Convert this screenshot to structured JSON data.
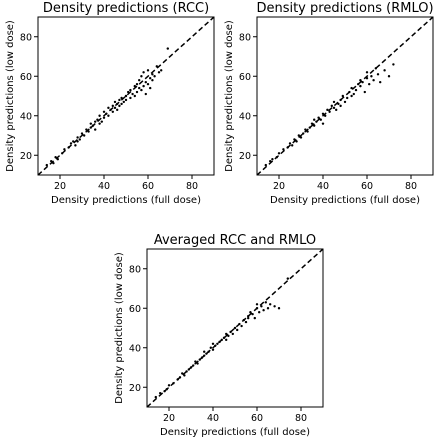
{
  "chart_data": [
    {
      "type": "scatter",
      "title": "Density predictions (RCC)",
      "xlabel": "Density predictions (full dose)",
      "ylabel": "Density predictions (low dose)",
      "xlim": [
        10,
        90
      ],
      "ylim": [
        10,
        90
      ],
      "xticks": [
        20,
        40,
        60,
        80
      ],
      "yticks": [
        20,
        40,
        60,
        80
      ],
      "reference_line": "y = x (dashed)",
      "x": [
        14,
        16,
        17,
        18,
        19,
        21,
        22,
        24,
        25,
        26,
        27,
        28,
        28,
        29,
        30,
        31,
        32,
        33,
        34,
        34,
        35,
        36,
        36,
        37,
        38,
        38,
        39,
        40,
        40,
        41,
        42,
        42,
        43,
        44,
        44,
        45,
        45,
        46,
        46,
        47,
        47,
        48,
        48,
        49,
        50,
        50,
        51,
        52,
        52,
        53,
        54,
        54,
        55,
        55,
        56,
        56,
        57,
        57,
        58,
        58,
        59,
        59,
        60,
        60,
        61,
        61,
        62,
        62,
        63,
        64,
        65,
        66,
        69
      ],
      "y": [
        15,
        17,
        16,
        19,
        18,
        21,
        23,
        24,
        26,
        27,
        25,
        29,
        27,
        28,
        31,
        30,
        33,
        32,
        34,
        36,
        35,
        37,
        33,
        38,
        36,
        40,
        37,
        39,
        42,
        41,
        44,
        40,
        43,
        45,
        42,
        47,
        44,
        46,
        43,
        48,
        45,
        49,
        46,
        47,
        50,
        48,
        52,
        49,
        53,
        51,
        55,
        50,
        56,
        52,
        54,
        58,
        53,
        60,
        55,
        62,
        57,
        51,
        56,
        63,
        59,
        54,
        61,
        58,
        60,
        65,
        62,
        63,
        74
      ]
    },
    {
      "type": "scatter",
      "title": "Density predictions (RMLO)",
      "xlabel": "Density predictions (full dose)",
      "ylabel": "Density predictions (low dose)",
      "xlim": [
        10,
        90
      ],
      "ylim": [
        10,
        90
      ],
      "xticks": [
        20,
        40,
        60,
        80
      ],
      "yticks": [
        20,
        40,
        60,
        80
      ],
      "reference_line": "y = x (dashed)",
      "x": [
        14,
        16,
        17,
        19,
        20,
        22,
        24,
        25,
        26,
        27,
        28,
        29,
        30,
        31,
        32,
        33,
        34,
        35,
        36,
        36,
        37,
        38,
        39,
        40,
        40,
        41,
        42,
        43,
        44,
        45,
        45,
        46,
        47,
        48,
        48,
        49,
        50,
        51,
        52,
        53,
        53,
        54,
        55,
        56,
        57,
        57,
        58,
        59,
        60,
        60,
        61,
        62,
        63,
        64,
        65,
        66,
        68,
        70,
        72
      ],
      "y": [
        15,
        17,
        18,
        19,
        21,
        23,
        24,
        26,
        25,
        28,
        27,
        30,
        29,
        31,
        33,
        32,
        34,
        36,
        35,
        38,
        37,
        39,
        38,
        41,
        36,
        40,
        43,
        42,
        45,
        44,
        47,
        43,
        46,
        48,
        45,
        50,
        47,
        49,
        52,
        50,
        54,
        51,
        53,
        56,
        55,
        58,
        57,
        52,
        59,
        62,
        56,
        60,
        58,
        64,
        61,
        57,
        63,
        60,
        66
      ]
    },
    {
      "type": "scatter",
      "title": "Averaged RCC and RMLO",
      "xlabel": "Density predictions (full dose)",
      "ylabel": "Density predictions (low dose)",
      "xlim": [
        10,
        90
      ],
      "ylim": [
        10,
        90
      ],
      "xticks": [
        20,
        40,
        60,
        80
      ],
      "yticks": [
        20,
        40,
        60,
        80
      ],
      "reference_line": "y = x (dashed)",
      "x": [
        14,
        16,
        18,
        19,
        20,
        22,
        24,
        25,
        26,
        27,
        28,
        29,
        30,
        31,
        32,
        33,
        34,
        35,
        36,
        36,
        37,
        38,
        39,
        40,
        40,
        41,
        42,
        43,
        44,
        45,
        46,
        46,
        47,
        48,
        49,
        50,
        51,
        52,
        53,
        54,
        55,
        56,
        56,
        57,
        58,
        59,
        60,
        60,
        61,
        62,
        63,
        64,
        65,
        66,
        68,
        70,
        74
      ],
      "y": [
        15,
        17,
        18,
        19,
        21,
        22,
        24,
        25,
        27,
        26,
        28,
        29,
        30,
        31,
        33,
        32,
        34,
        35,
        36,
        38,
        37,
        38,
        40,
        39,
        42,
        41,
        42,
        43,
        44,
        45,
        47,
        44,
        46,
        48,
        47,
        50,
        49,
        52,
        51,
        54,
        53,
        56,
        55,
        58,
        57,
        55,
        60,
        62,
        58,
        61,
        59,
        63,
        60,
        62,
        61,
        60,
        75
      ]
    }
  ]
}
